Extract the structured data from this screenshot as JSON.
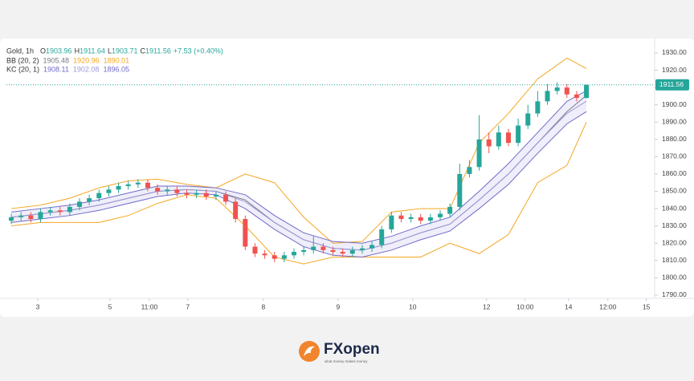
{
  "chart_data": {
    "type": "candlestick",
    "symbol": "Gold, 1h",
    "ohlc_prefixes": [
      "O",
      "H",
      "L",
      "C"
    ],
    "change": "+7.53 (+0.40%)",
    "up_color": "#26a69a",
    "down_color": "#ef5350",
    "x": [
      0,
      1,
      2,
      3,
      4,
      5,
      6,
      7,
      8,
      9,
      10,
      11,
      12,
      13,
      14,
      15,
      16,
      17,
      18,
      19,
      20,
      21,
      22,
      23,
      24,
      25,
      26,
      27,
      28,
      29,
      30,
      31,
      32,
      33,
      34,
      35,
      36,
      37,
      38,
      39,
      40,
      41,
      42,
      43,
      44,
      45,
      46,
      47,
      48,
      49,
      50,
      51,
      52,
      53,
      54,
      55,
      56,
      57,
      58,
      59
    ],
    "open": [
      1833,
      1835,
      1836,
      1834,
      1838,
      1839,
      1838,
      1841,
      1844,
      1846,
      1849,
      1851,
      1853,
      1854,
      1855,
      1852,
      1850,
      1851,
      1849,
      1848,
      1849,
      1847,
      1848,
      1844,
      1834,
      1818,
      1814,
      1813,
      1811,
      1813,
      1815,
      1816,
      1818,
      1816,
      1815,
      1814,
      1816,
      1817,
      1819,
      1828,
      1836,
      1834,
      1835,
      1833,
      1835,
      1837,
      1841,
      1860,
      1864,
      1880,
      1876,
      1884,
      1878,
      1888,
      1895,
      1902,
      1908,
      1910,
      1906,
      1903.96
    ],
    "high": [
      1837,
      1838,
      1838,
      1840,
      1841,
      1841,
      1843,
      1846,
      1848,
      1851,
      1853,
      1855,
      1856,
      1857,
      1857,
      1854,
      1853,
      1853,
      1851,
      1851,
      1851,
      1850,
      1850,
      1846,
      1836,
      1820,
      1816,
      1815,
      1815,
      1817,
      1818,
      1824,
      1820,
      1818,
      1817,
      1818,
      1819,
      1821,
      1830,
      1838,
      1838,
      1837,
      1837,
      1837,
      1839,
      1843,
      1866,
      1868,
      1894,
      1884,
      1888,
      1886,
      1892,
      1900,
      1908,
      1912,
      1913,
      1912,
      1908,
      1911.64
    ],
    "low": [
      1831,
      1833,
      1832,
      1832,
      1836,
      1836,
      1836,
      1839,
      1842,
      1844,
      1847,
      1849,
      1851,
      1852,
      1850,
      1848,
      1848,
      1847,
      1846,
      1846,
      1845,
      1845,
      1842,
      1832,
      1816,
      1812,
      1811,
      1809,
      1809,
      1811,
      1813,
      1814,
      1814,
      1813,
      1812,
      1812,
      1814,
      1815,
      1817,
      1826,
      1832,
      1832,
      1831,
      1831,
      1833,
      1835,
      1839,
      1858,
      1862,
      1872,
      1874,
      1876,
      1876,
      1886,
      1893,
      1900,
      1906,
      1904,
      1902,
      1903.71
    ],
    "close": [
      1835,
      1836,
      1834,
      1838,
      1839,
      1838,
      1841,
      1844,
      1846,
      1849,
      1851,
      1853,
      1854,
      1855,
      1852,
      1850,
      1851,
      1849,
      1848,
      1849,
      1847,
      1848,
      1844,
      1834,
      1818,
      1814,
      1813,
      1811,
      1813,
      1815,
      1816,
      1818,
      1816,
      1815,
      1814,
      1816,
      1817,
      1819,
      1828,
      1836,
      1834,
      1835,
      1833,
      1835,
      1837,
      1841,
      1860,
      1864,
      1880,
      1876,
      1884,
      1878,
      1888,
      1895,
      1902,
      1908,
      1910,
      1906,
      1904,
      1911.56
    ],
    "band_x": [
      0,
      3,
      6,
      9,
      12,
      15,
      18,
      21,
      24,
      27,
      30,
      33,
      36,
      39,
      42,
      45,
      48,
      51,
      54,
      57,
      59
    ],
    "indicators": [
      {
        "name": "BB (20, 2)",
        "series": [
          {
            "color": "#787b86",
            "values": [
              1835,
              1837,
              1839,
              1842,
              1846,
              1850,
              1851,
              1850,
              1845,
              1832,
              1822,
              1817,
              1816,
              1820,
              1826,
              1831,
              1845,
              1860,
              1878,
              1896,
              1905.48
            ]
          },
          {
            "color": "#f5a623",
            "values": [
              1840,
              1842,
              1846,
              1852,
              1856,
              1857,
              1854,
              1852,
              1860,
              1855,
              1835,
              1820,
              1821,
              1838,
              1840,
              1840,
              1878,
              1895,
              1915,
              1927,
              1920.96
            ]
          },
          {
            "color": "#f5a623",
            "values": [
              1830,
              1832,
              1832,
              1832,
              1836,
              1843,
              1848,
              1846,
              1830,
              1812,
              1808,
              1812,
              1812,
              1812,
              1812,
              1820,
              1814,
              1825,
              1855,
              1865,
              1890.01
            ]
          }
        ]
      },
      {
        "name": "KC (20, 1)",
        "series": [
          {
            "color": "#6f6bc7",
            "values": [
              1838,
              1840,
              1842,
              1845,
              1849,
              1853,
              1853,
              1852,
              1848,
              1836,
              1826,
              1821,
              1820,
              1824,
              1830,
              1835,
              1850,
              1866,
              1884,
              1902,
              1908.11
            ]
          },
          {
            "color": "#9c99d9",
            "values": [
              1835,
              1837,
              1839,
              1842,
              1846,
              1850,
              1851,
              1850,
              1844,
              1832,
              1822,
              1817,
              1816,
              1820,
              1826,
              1831,
              1845,
              1860,
              1878,
              1895,
              1902.08
            ]
          },
          {
            "color": "#6f6bc7",
            "values": [
              1832,
              1834,
              1836,
              1839,
              1843,
              1847,
              1849,
              1848,
              1840,
              1828,
              1818,
              1813,
              1812,
              1816,
              1822,
              1827,
              1840,
              1854,
              1872,
              1889,
              1896.05
            ]
          }
        ]
      }
    ],
    "xlim": [
      -0.5,
      66
    ],
    "xticks": [
      {
        "value": 2.71,
        "label": "3"
      },
      {
        "value": 10.13,
        "label": "5"
      },
      {
        "value": 14.16,
        "label": "11:00"
      },
      {
        "value": 18.1,
        "label": "7"
      },
      {
        "value": 25.86,
        "label": "8"
      },
      {
        "value": 33.52,
        "label": "9"
      },
      {
        "value": 41.18,
        "label": "10"
      },
      {
        "value": 48.76,
        "label": "12"
      },
      {
        "value": 52.71,
        "label": "10:00"
      },
      {
        "value": 57.16,
        "label": "14"
      },
      {
        "value": 61.2,
        "label": "12:00"
      },
      {
        "value": 65.15,
        "label": "15"
      }
    ],
    "ylim": [
      1788.1,
      1937.4
    ],
    "yticks": [
      {
        "value": 1790,
        "label": "1790.00"
      },
      {
        "value": 1800,
        "label": "1800.00"
      },
      {
        "value": 1810,
        "label": "1810.00"
      },
      {
        "value": 1820,
        "label": "1820.00"
      },
      {
        "value": 1830,
        "label": "1830.00"
      },
      {
        "value": 1840,
        "label": "1840.00"
      },
      {
        "value": 1850,
        "label": "1850.00"
      },
      {
        "value": 1860,
        "label": "1860.00"
      },
      {
        "value": 1870,
        "label": "1870.00"
      },
      {
        "value": 1880,
        "label": "1880.00"
      },
      {
        "value": 1890,
        "label": "1890.00"
      },
      {
        "value": 1900,
        "label": "1900.00"
      },
      {
        "value": 1910,
        "label": "1910.00"
      },
      {
        "value": 1920,
        "label": "1920.00"
      },
      {
        "value": 1930,
        "label": "1930.00"
      }
    ],
    "grid": false
  },
  "footer": {
    "logo": "FXopen",
    "tagline": "what money makes money"
  }
}
